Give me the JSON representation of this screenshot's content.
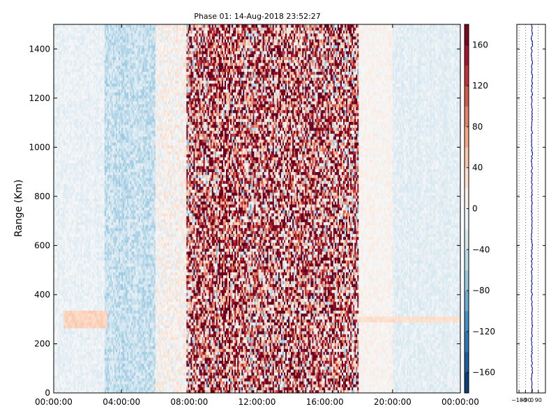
{
  "chart_data": [
    {
      "type": "heatmap",
      "title": "Phase 01: 14-Aug-2018 23:52:27",
      "ylabel": "Range (Km)",
      "xlabel": "",
      "x_ticks": [
        "00:00:00",
        "04:00:00",
        "08:00:00",
        "12:00:00",
        "16:00:00",
        "20:00:00",
        "00:00:00"
      ],
      "x_tick_hours": [
        0,
        4,
        8,
        12,
        16,
        20,
        24
      ],
      "xlim_hours": [
        0,
        24
      ],
      "y_ticks": [
        "0",
        "200",
        "400",
        "600",
        "800",
        "1000",
        "1200",
        "1400"
      ],
      "y_tick_values": [
        0,
        200,
        400,
        600,
        800,
        1000,
        1200,
        1400
      ],
      "ylim": [
        0,
        1500
      ],
      "colorbar": {
        "ticks": [
          "−160",
          "−120",
          "−80",
          "−40",
          "0",
          "40",
          "80",
          "120",
          "160"
        ],
        "tick_values": [
          -160,
          -120,
          -80,
          -40,
          0,
          40,
          80,
          120,
          160
        ],
        "range": [
          -180,
          180
        ],
        "colormap": "RdBu_r"
      },
      "regions": [
        {
          "from_hour": 0.0,
          "to_hour": 3.0,
          "phase_mean": -12,
          "phase_spread": 14
        },
        {
          "from_hour": 3.0,
          "to_hour": 6.0,
          "phase_mean": -40,
          "phase_spread": 25
        },
        {
          "from_hour": 6.0,
          "to_hour": 7.8,
          "phase_mean": 5,
          "phase_spread": 30
        },
        {
          "from_hour": 7.8,
          "to_hour": 18.0,
          "phase_mean": 90,
          "phase_spread": 160
        },
        {
          "from_hour": 18.0,
          "to_hour": 20.0,
          "phase_mean": 5,
          "phase_spread": 12
        },
        {
          "from_hour": 20.0,
          "to_hour": 24.0,
          "phase_mean": -18,
          "phase_spread": 14
        }
      ],
      "features": [
        {
          "from_hour": 0.6,
          "to_hour": 3.2,
          "range_from": 270,
          "range_to": 330,
          "phase": 40
        },
        {
          "from_hour": 18.0,
          "to_hour": 24.0,
          "range_from": 285,
          "range_to": 315,
          "phase": 30
        }
      ]
    },
    {
      "type": "line",
      "title": "",
      "x_ticks": [
        "−180",
        "−90",
        "0",
        "90"
      ],
      "x_tick_values": [
        -180,
        -90,
        0,
        90
      ],
      "xlim": [
        -210,
        190
      ],
      "ylim": [
        0,
        1500
      ],
      "grid": "vertical dotted",
      "series": [
        {
          "color": "#0000b4",
          "mean": 0,
          "spread": 10
        }
      ]
    }
  ]
}
